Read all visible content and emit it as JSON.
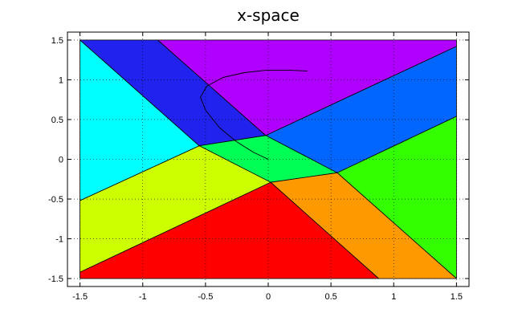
{
  "chart_data": {
    "type": "area",
    "title": "x-space",
    "xlabel": "",
    "ylabel": "",
    "xlim": [
      -1.6,
      1.6
    ],
    "ylim": [
      -1.6,
      1.6
    ],
    "xticks": [
      -1.5,
      -1,
      -0.5,
      0,
      0.5,
      1,
      1.5
    ],
    "xtick_labels": [
      "-1.5",
      "-1",
      "-0.5",
      "0",
      "0.5",
      "1",
      "1.5"
    ],
    "yticks": [
      1.5,
      1,
      0.5,
      0,
      -0.5,
      -1,
      -1.5
    ],
    "ytick_labels": [
      "1.5",
      "1",
      "0.5",
      "0",
      "-0.5",
      "-1",
      "-1.5"
    ],
    "grid": true,
    "regions": [
      {
        "color": "#00ffff",
        "points": [
          [
            -1.5,
            1.5
          ],
          [
            -1.5,
            -0.52
          ],
          [
            -0.55,
            0.17
          ]
        ]
      },
      {
        "color": "#2222ee",
        "points": [
          [
            -1.5,
            1.5
          ],
          [
            -0.88,
            1.5
          ],
          [
            -0.02,
            0.3
          ],
          [
            -0.55,
            0.17
          ]
        ]
      },
      {
        "color": "#b000ff",
        "points": [
          [
            -0.88,
            1.5
          ],
          [
            1.5,
            1.5
          ],
          [
            1.5,
            1.42
          ],
          [
            -0.02,
            0.3
          ]
        ]
      },
      {
        "color": "#0066ff",
        "points": [
          [
            1.5,
            1.42
          ],
          [
            1.5,
            0.54
          ],
          [
            0.55,
            -0.17
          ],
          [
            -0.02,
            0.3
          ]
        ]
      },
      {
        "color": "#33ff00",
        "points": [
          [
            1.5,
            0.54
          ],
          [
            1.5,
            -1.5
          ],
          [
            0.55,
            -0.17
          ]
        ]
      },
      {
        "color": "#00ff55",
        "points": [
          [
            -0.55,
            0.17
          ],
          [
            -0.02,
            0.3
          ],
          [
            0.55,
            -0.17
          ],
          [
            0.02,
            -0.29
          ]
        ]
      },
      {
        "color": "#ccff00",
        "points": [
          [
            -1.5,
            -0.52
          ],
          [
            -0.55,
            0.17
          ],
          [
            0.02,
            -0.29
          ],
          [
            -1.5,
            -1.42
          ]
        ]
      },
      {
        "color": "#ff9900",
        "points": [
          [
            0.02,
            -0.29
          ],
          [
            0.55,
            -0.17
          ],
          [
            1.5,
            -1.5
          ],
          [
            0.88,
            -1.5
          ]
        ]
      },
      {
        "color": "#ff0000",
        "points": [
          [
            -1.5,
            -1.42
          ],
          [
            -1.5,
            -1.5
          ],
          [
            0.88,
            -1.5
          ],
          [
            0.02,
            -0.29
          ]
        ]
      }
    ],
    "trajectory": {
      "color": "#000000",
      "points": [
        [
          0.0,
          0.0
        ],
        [
          -0.12,
          0.09
        ],
        [
          -0.26,
          0.23
        ],
        [
          -0.39,
          0.4
        ],
        [
          -0.5,
          0.62
        ],
        [
          -0.54,
          0.78
        ],
        [
          -0.49,
          0.92
        ],
        [
          -0.36,
          1.03
        ],
        [
          -0.19,
          1.09
        ],
        [
          -0.02,
          1.12
        ],
        [
          0.18,
          1.12
        ],
        [
          0.31,
          1.11
        ]
      ]
    }
  }
}
